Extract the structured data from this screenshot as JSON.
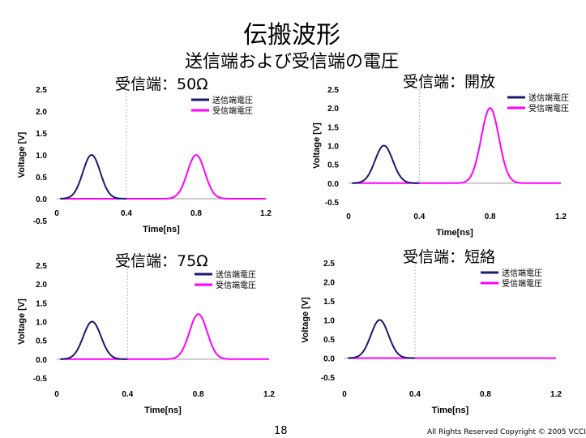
{
  "slide": {
    "title": "伝搬波形",
    "subtitle": "送信端および受信端の電圧",
    "page_number": "18",
    "copyright": "All Rights Reserved Copyright © 2005 VCCI"
  },
  "colors": {
    "send": "#1a1a6e",
    "receive": "#ff00ff",
    "midline": "#b8b8b8"
  },
  "chart_data": [
    {
      "type": "line",
      "panel_label": "受信端：50Ω",
      "xlabel": "Time[ns]",
      "ylabel": "Voltage [V]",
      "xlim": [
        0,
        1.2
      ],
      "ylim": [
        -0.5,
        2.5
      ],
      "x_ticks": [
        "0",
        "0.4",
        "0.8",
        "1.2"
      ],
      "y_ticks": [
        "-0.5",
        "0.0",
        "0.5",
        "1.0",
        "1.5",
        "2.0",
        "2.5"
      ],
      "legend": [
        "送信端電圧",
        "受信端電圧"
      ],
      "legend_position": "top-right",
      "series": [
        {
          "name": "送信端電圧",
          "pulse": {
            "center": 0.2,
            "peak": 1.0,
            "width": 0.05
          }
        },
        {
          "name": "受信端電圧",
          "pulse": {
            "center": 0.8,
            "peak": 1.0,
            "width": 0.05
          }
        }
      ]
    },
    {
      "type": "line",
      "panel_label": "受信端：開放",
      "xlabel": "Time[ns]",
      "ylabel": "Voltage [V]",
      "xlim": [
        0,
        1.2
      ],
      "ylim": [
        -0.5,
        2.5
      ],
      "x_ticks": [
        "0",
        "0.4",
        "0.8",
        "1.2"
      ],
      "y_ticks": [
        "-0.5",
        "0.0",
        "0.5",
        "1.0",
        "1.5",
        "2.0",
        "2.5"
      ],
      "legend": [
        "送信端電圧",
        "受信端電圧"
      ],
      "legend_position": "top-right",
      "series": [
        {
          "name": "送信端電圧",
          "pulse": {
            "center": 0.2,
            "peak": 1.0,
            "width": 0.05
          }
        },
        {
          "name": "受信端電圧",
          "pulse": {
            "center": 0.8,
            "peak": 2.0,
            "width": 0.05
          }
        }
      ]
    },
    {
      "type": "line",
      "panel_label": "受信端：75Ω",
      "xlabel": "Time[ns]",
      "ylabel": "Voltage [V]",
      "xlim": [
        0,
        1.2
      ],
      "ylim": [
        -0.5,
        2.5
      ],
      "x_ticks": [
        "0",
        "0.4",
        "0.8",
        "1.2"
      ],
      "y_ticks": [
        "-0.5",
        "0.0",
        "0.5",
        "1.0",
        "1.5",
        "2.0",
        "2.5"
      ],
      "legend": [
        "送信端電圧",
        "受信端電圧"
      ],
      "legend_position": "top-right",
      "series": [
        {
          "name": "送信端電圧",
          "pulse": {
            "center": 0.2,
            "peak": 1.0,
            "width": 0.05
          }
        },
        {
          "name": "受信端電圧",
          "pulse": {
            "center": 0.8,
            "peak": 1.2,
            "width": 0.05
          }
        }
      ]
    },
    {
      "type": "line",
      "panel_label": "受信端：短絡",
      "xlabel": "Time[ns]",
      "ylabel": "Voltage [V]",
      "xlim": [
        0,
        1.2
      ],
      "ylim": [
        -0.5,
        2.5
      ],
      "x_ticks": [
        "0",
        "0.4",
        "0.8",
        "1.2"
      ],
      "y_ticks": [
        "-0.5",
        "0.0",
        "0.5",
        "1.0",
        "1.5",
        "2.0",
        "2.5"
      ],
      "legend": [
        "送信端電圧",
        "受信端電圧"
      ],
      "legend_position": "top-right",
      "series": [
        {
          "name": "送信端電圧",
          "pulse": {
            "center": 0.2,
            "peak": 1.0,
            "width": 0.05
          }
        },
        {
          "name": "受信端電圧",
          "pulse": {
            "center": 0.8,
            "peak": 0.0,
            "width": 0.05
          }
        }
      ]
    }
  ]
}
